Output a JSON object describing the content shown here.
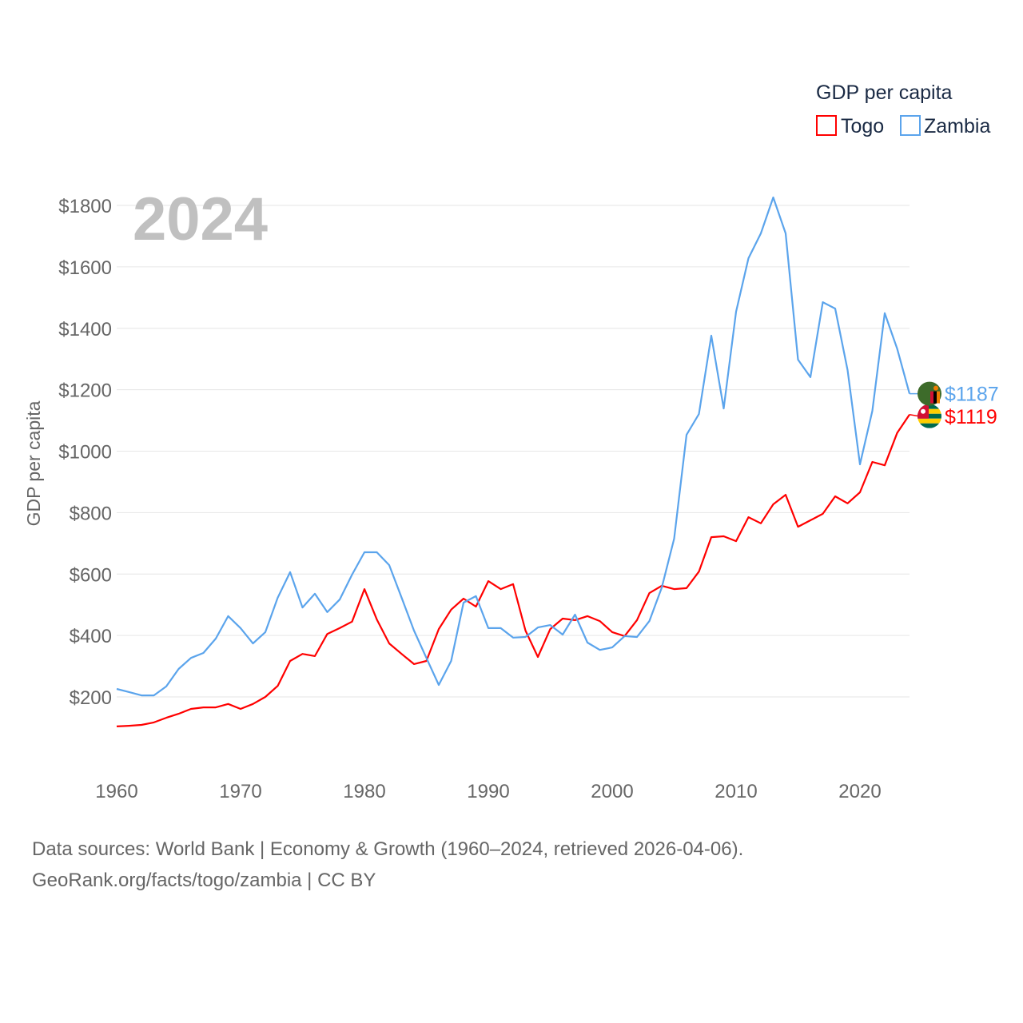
{
  "chart_data": {
    "type": "line",
    "title": "GDP per capita",
    "year_label": "2024",
    "xlabel": "",
    "ylabel": "GDP per capita",
    "xlim": [
      1960,
      2024
    ],
    "ylim": [
      0,
      1850
    ],
    "x_ticks": [
      1960,
      1970,
      1980,
      1990,
      2000,
      2010,
      2020
    ],
    "y_ticks": [
      200,
      400,
      600,
      800,
      1000,
      1200,
      1400,
      1600,
      1800
    ],
    "y_tick_prefix": "$",
    "grid": true,
    "legend_position": "top-right",
    "x": [
      1960,
      1961,
      1962,
      1963,
      1964,
      1965,
      1966,
      1967,
      1968,
      1969,
      1970,
      1971,
      1972,
      1973,
      1974,
      1975,
      1976,
      1977,
      1978,
      1979,
      1980,
      1981,
      1982,
      1983,
      1984,
      1985,
      1986,
      1987,
      1988,
      1989,
      1990,
      1991,
      1992,
      1993,
      1994,
      1995,
      1996,
      1997,
      1998,
      1999,
      2000,
      2001,
      2002,
      2003,
      2004,
      2005,
      2006,
      2007,
      2008,
      2009,
      2010,
      2011,
      2012,
      2013,
      2014,
      2015,
      2016,
      2017,
      2018,
      2019,
      2020,
      2021,
      2022,
      2023,
      2024
    ],
    "series": [
      {
        "name": "Togo",
        "color": "#ff0000",
        "end_label": "$1119",
        "values": [
          104,
          106,
          109,
          117,
          132,
          145,
          161,
          166,
          166,
          177,
          161,
          177,
          200,
          236,
          317,
          340,
          333,
          405,
          424,
          445,
          551,
          452,
          374,
          340,
          307,
          317,
          421,
          484,
          520,
          494,
          577,
          551,
          567,
          416,
          330,
          421,
          455,
          450,
          463,
          447,
          411,
          398,
          450,
          538,
          562,
          551,
          554,
          608,
          720,
          723,
          707,
          785,
          765,
          827,
          858,
          754,
          775,
          796,
          853,
          830,
          866,
          965,
          954,
          1059,
          1119
        ]
      },
      {
        "name": "Zambia",
        "color": "#5ba4ec",
        "end_label": "$1187",
        "values": [
          226,
          216,
          205,
          205,
          234,
          291,
          327,
          343,
          390,
          463,
          424,
          374,
          411,
          523,
          606,
          491,
          536,
          476,
          517,
          598,
          671,
          671,
          629,
          523,
          416,
          327,
          239,
          317,
          507,
          528,
          424,
          424,
          393,
          395,
          426,
          434,
          403,
          468,
          377,
          353,
          361,
          398,
          395,
          447,
          556,
          715,
          1053,
          1121,
          1376,
          1139,
          1454,
          1628,
          1709,
          1826,
          1709,
          1298,
          1241,
          1485,
          1464,
          1264,
          957,
          1131,
          1449,
          1334,
          1187
        ]
      }
    ]
  },
  "footer": {
    "line1": "Data sources: World Bank | Economy & Growth (1960–2024, retrieved 2026-04-06).",
    "line2": "GeoRank.org/facts/togo/zambia | CC BY"
  }
}
